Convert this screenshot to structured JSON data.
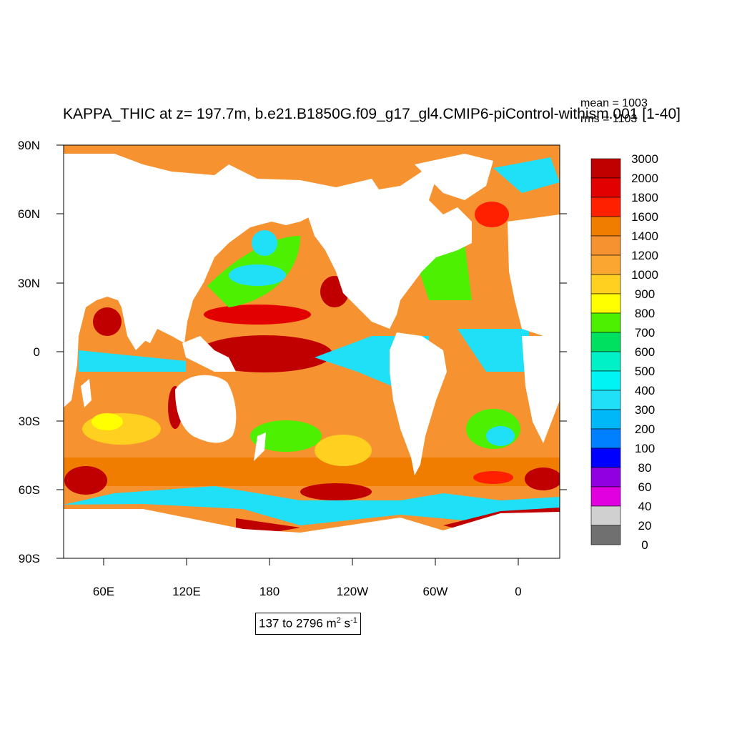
{
  "title": "KAPPA_THIC at z= 197.7m, b.e21.B1850G.f09_g17_gl4.CMIP6-piControl-withism.001 [1-40]",
  "stats": {
    "mean": "mean = 1003",
    "rms": "rms = 1103"
  },
  "range": {
    "text": "137 to 2796 m",
    "unit_sup1": "2",
    "unit_mid": " s",
    "unit_sup2": "-1"
  },
  "axes": {
    "lat_labels": [
      "90N",
      "60N",
      "30N",
      "0",
      "30S",
      "60S",
      "90S"
    ],
    "lon_labels": [
      "60E",
      "120E",
      "180",
      "120W",
      "60W",
      "0"
    ]
  },
  "legend": {
    "labels": [
      "3000",
      "2000",
      "1800",
      "1600",
      "1400",
      "1200",
      "1000",
      "900",
      "800",
      "700",
      "600",
      "500",
      "400",
      "300",
      "200",
      "100",
      "80",
      "60",
      "40",
      "20",
      "0"
    ],
    "colors": [
      "#c00000",
      "#e20000",
      "#ff2000",
      "#f07c00",
      "#f69230",
      "#faa630",
      "#ffd020",
      "#ffff00",
      "#4df000",
      "#00e060",
      "#00f0c8",
      "#00f4f4",
      "#20e0f8",
      "#00b8f8",
      "#0080ff",
      "#0000ff",
      "#9000e0",
      "#e000e0",
      "#d0d0d0",
      "#707070"
    ]
  },
  "map_colors": {
    "ocean_base": "#f69230",
    "land": "#ffffff",
    "cyan": "#20e0f8",
    "green": "#4df000",
    "yellow": "#ffd020",
    "red": "#c00000",
    "orange_dark": "#f07c00"
  }
}
